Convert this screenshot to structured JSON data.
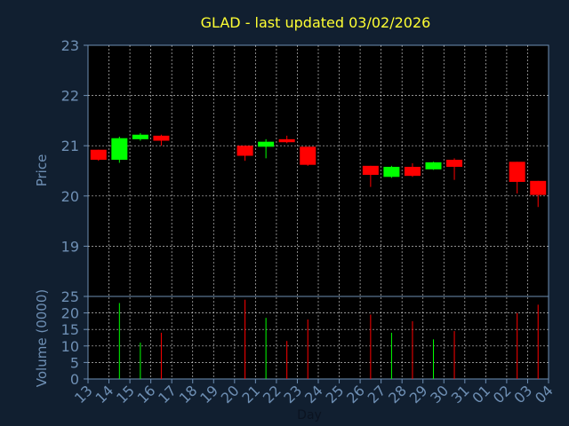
{
  "chart_data": {
    "type": "candlestick",
    "title": "GLAD - last updated 03/02/2026",
    "ylabel_price": "Price",
    "ylabel_volume": "Volume (0000)",
    "xlabel": "Day",
    "price_ylim": [
      18,
      23
    ],
    "price_ticks": [
      "19",
      "20",
      "21",
      "22",
      "23"
    ],
    "volume_ylim": [
      0,
      25
    ],
    "volume_ticks": [
      "0",
      "5",
      "10",
      "15",
      "20",
      "25"
    ],
    "grid": true,
    "categories": [
      "13",
      "14",
      "15",
      "16",
      "17",
      "18",
      "19",
      "20",
      "21",
      "22",
      "23",
      "24",
      "25",
      "26",
      "27",
      "28",
      "29",
      "30",
      "31",
      "01",
      "02",
      "03",
      "04"
    ],
    "candles": [
      {
        "day": "13",
        "open": 20.92,
        "high": 20.92,
        "low": 20.7,
        "close": 20.72,
        "volume": 0
      },
      {
        "day": "14",
        "open": 20.72,
        "high": 21.18,
        "low": 20.66,
        "close": 21.15,
        "volume": 23
      },
      {
        "day": "15",
        "open": 21.13,
        "high": 21.25,
        "low": 21.1,
        "close": 21.22,
        "volume": 11
      },
      {
        "day": "16",
        "open": 21.2,
        "high": 21.22,
        "low": 21.0,
        "close": 21.1,
        "volume": 14
      },
      {
        "day": "20",
        "open": 21.0,
        "high": 21.0,
        "low": 20.7,
        "close": 20.8,
        "volume": 24
      },
      {
        "day": "21",
        "open": 20.98,
        "high": 21.13,
        "low": 20.75,
        "close": 21.08,
        "volume": 18.5
      },
      {
        "day": "22",
        "open": 21.13,
        "high": 21.2,
        "low": 21.05,
        "close": 21.07,
        "volume": 11.5
      },
      {
        "day": "23",
        "open": 20.98,
        "high": 20.98,
        "low": 20.6,
        "close": 20.62,
        "volume": 18
      },
      {
        "day": "26",
        "open": 20.6,
        "high": 20.6,
        "low": 20.18,
        "close": 20.42,
        "volume": 19.5
      },
      {
        "day": "27",
        "open": 20.38,
        "high": 20.6,
        "low": 20.36,
        "close": 20.58,
        "volume": 14
      },
      {
        "day": "28",
        "open": 20.58,
        "high": 20.65,
        "low": 20.38,
        "close": 20.4,
        "volume": 17.5
      },
      {
        "day": "29",
        "open": 20.53,
        "high": 20.68,
        "low": 20.52,
        "close": 20.67,
        "volume": 12
      },
      {
        "day": "30",
        "open": 20.72,
        "high": 20.75,
        "low": 20.32,
        "close": 20.58,
        "volume": 14.5
      },
      {
        "day": "02",
        "open": 20.68,
        "high": 20.68,
        "low": 20.05,
        "close": 20.28,
        "volume": 20
      },
      {
        "day": "03",
        "open": 20.3,
        "high": 20.3,
        "low": 19.78,
        "close": 20.02,
        "volume": 22.5
      }
    ]
  },
  "colors": {
    "background": "#111f30",
    "plot_background": "#000000",
    "axis_frame": "#6e8fb4",
    "grid": "#ffffff",
    "title": "#ffff33",
    "tick_text": "#6e8fb4",
    "up_candle": "#00ff00",
    "down_candle": "#ff0000"
  }
}
